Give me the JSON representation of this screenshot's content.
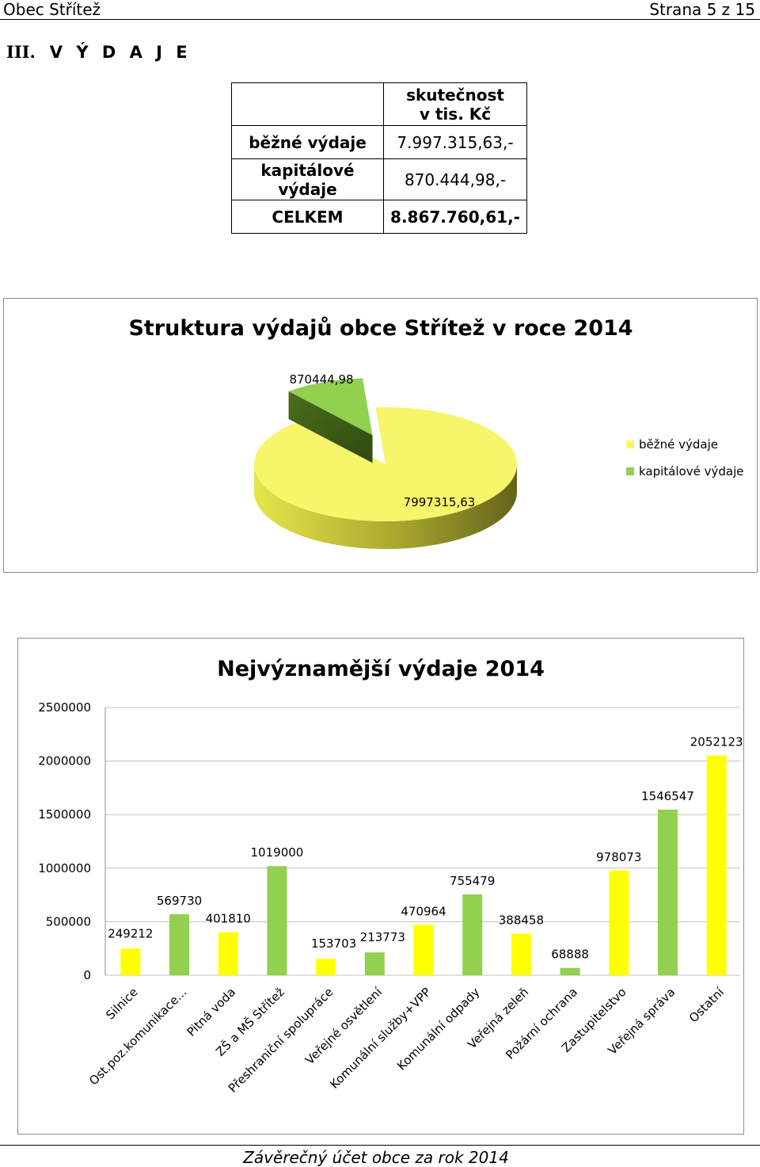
{
  "header": {
    "left": "Obec Střítež",
    "right": "Strana 5 z 15"
  },
  "section": {
    "number": "III.",
    "title": "V Ý D A J E"
  },
  "summary_table": {
    "header": "skutečnost v tis. Kč",
    "header_line1": "skutečnost",
    "header_line2": "v tis. Kč",
    "rows": [
      {
        "label": "běžné výdaje",
        "value": "7.997.315,63,-"
      },
      {
        "label_line1": "kapitálové",
        "label_line2": "výdaje",
        "value": "870.444,98,-"
      },
      {
        "label": "CELKEM",
        "value": "8.867.760,61,-"
      }
    ]
  },
  "chart_data": [
    {
      "type": "pie",
      "title": "Struktura výdajů obce Střítež v roce 2014",
      "categories": [
        "běžné výdaje",
        "kapitálové výdaje"
      ],
      "values": [
        7997315.63,
        870444.98
      ],
      "data_labels": [
        "7997315,63",
        "870444,98"
      ],
      "colors": [
        "#F7F66A",
        "#92D050"
      ],
      "legend": "right",
      "three_d": true
    },
    {
      "type": "bar",
      "title": "Nejvýznamější výdaje 2014",
      "categories": [
        "Silnice",
        "Ost.poz.komunikace...",
        "Pitná voda",
        "ZŠ a MŠ Střítež",
        "Přeshraniční spolupráce",
        "Veřejné osvětlení",
        "Komunální služby+VPP",
        "Komunální odpady",
        "Veřejná zeleň",
        "Požární ochrana",
        "Zastupitelstvo",
        "Veřejná správa",
        "Ostatní"
      ],
      "values": [
        249212,
        569730,
        401810,
        1019000,
        153703,
        213773,
        470964,
        755479,
        388458,
        68888,
        978073,
        1546547,
        2052123
      ],
      "colors": [
        "#FFFF00",
        "#92D050",
        "#FFFF00",
        "#92D050",
        "#FFFF00",
        "#92D050",
        "#FFFF00",
        "#92D050",
        "#FFFF00",
        "#92D050",
        "#FFFF00",
        "#92D050",
        "#FFFF00"
      ],
      "ylim": [
        0,
        2500000
      ],
      "yticks": [
        0,
        500000,
        1000000,
        1500000,
        2000000,
        2500000
      ],
      "grid": true,
      "legend": "none"
    }
  ],
  "footer": "Závěrečný účet obce za rok 2014"
}
